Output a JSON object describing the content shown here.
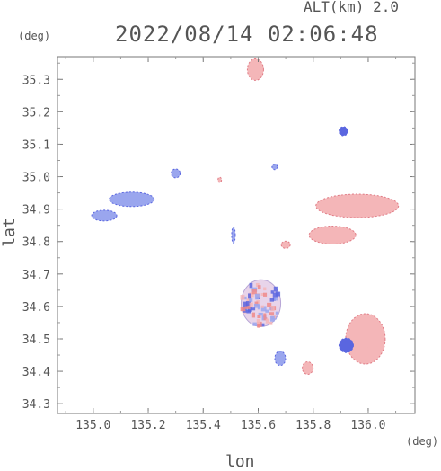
{
  "header": {
    "alt_label": "ALT(km) 2.0",
    "timestamp": "2022/08/14 02:06:48"
  },
  "axes": {
    "y_unit": "(deg)",
    "x_unit": "(deg)",
    "xlabel": "lon",
    "ylabel": "lat"
  },
  "chart_data": {
    "type": "heatmap",
    "xlabel": "lon",
    "ylabel": "lat",
    "xlim": [
      134.87,
      136.17
    ],
    "ylim": [
      34.27,
      35.37
    ],
    "x_ticks": [
      135.0,
      135.2,
      135.4,
      135.6,
      135.8,
      136.0
    ],
    "x_tick_labels": [
      "135.0",
      "135.2",
      "135.4",
      "135.6",
      "135.8",
      "136.0"
    ],
    "y_ticks": [
      34.3,
      34.4,
      34.5,
      34.6,
      34.7,
      34.8,
      34.9,
      35.0,
      35.1,
      35.2,
      35.3
    ],
    "y_tick_labels": [
      "34.3",
      "34.4",
      "34.5",
      "34.6",
      "34.7",
      "34.8",
      "34.9",
      "35.0",
      "35.1",
      "35.2",
      "35.3"
    ],
    "grid": false,
    "colors": {
      "positive": "#f4b6b8",
      "negative": "#9aa6ee",
      "strong_negative": "#5a66e0",
      "strong_positive": "#ee8a8a"
    },
    "echo_regions": [
      {
        "lon": 135.59,
        "lat": 35.33,
        "sign": "positive",
        "intensity": 0.3
      },
      {
        "lon": 135.91,
        "lat": 35.14,
        "sign": "negative",
        "intensity": 0.9
      },
      {
        "lon": 135.3,
        "lat": 35.01,
        "sign": "negative",
        "intensity": 0.4
      },
      {
        "lon": 135.66,
        "lat": 35.03,
        "sign": "negative",
        "intensity": 0.6
      },
      {
        "lon": 135.46,
        "lat": 34.99,
        "sign": "positive",
        "intensity": 0.3
      },
      {
        "lon": 135.14,
        "lat": 34.93,
        "sign": "negative",
        "intensity": 0.4
      },
      {
        "lon": 135.04,
        "lat": 34.88,
        "sign": "negative",
        "intensity": 0.4
      },
      {
        "lon": 135.96,
        "lat": 34.91,
        "sign": "positive",
        "intensity": 0.4
      },
      {
        "lon": 135.87,
        "lat": 34.82,
        "sign": "positive",
        "intensity": 0.4
      },
      {
        "lon": 135.7,
        "lat": 34.79,
        "sign": "positive",
        "intensity": 0.3
      },
      {
        "lon": 135.51,
        "lat": 34.82,
        "sign": "negative",
        "intensity": 0.6
      },
      {
        "lon": 135.61,
        "lat": 34.61,
        "sign": "mixed",
        "intensity": 0.5
      },
      {
        "lon": 135.99,
        "lat": 34.5,
        "sign": "positive",
        "intensity": 0.25
      },
      {
        "lon": 135.92,
        "lat": 34.48,
        "sign": "negative",
        "intensity": 0.7
      },
      {
        "lon": 135.68,
        "lat": 34.44,
        "sign": "negative",
        "intensity": 0.6
      },
      {
        "lon": 135.78,
        "lat": 34.41,
        "sign": "positive",
        "intensity": 0.3
      }
    ]
  }
}
